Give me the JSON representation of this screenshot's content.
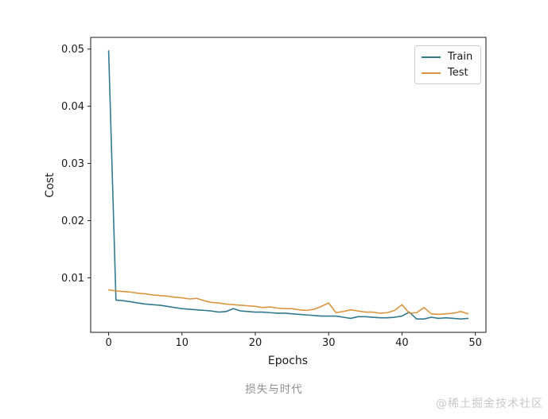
{
  "chart_data": {
    "type": "line",
    "xlabel": "Epochs",
    "ylabel": "Cost",
    "xlim": [
      -2.45,
      51.45
    ],
    "ylim": [
      0.00046,
      0.05205
    ],
    "xticks": [
      0,
      10,
      20,
      30,
      40,
      50
    ],
    "xtick_labels": [
      "0",
      "10",
      "20",
      "30",
      "40",
      "50"
    ],
    "yticks": [
      0.01,
      0.02,
      0.03,
      0.04,
      0.05
    ],
    "ytick_labels": [
      "0.01",
      "0.02",
      "0.03",
      "0.04",
      "0.05"
    ],
    "grid": false,
    "legend_position": "upper right",
    "x": [
      0,
      1,
      2,
      3,
      4,
      5,
      6,
      7,
      8,
      9,
      10,
      11,
      12,
      13,
      14,
      15,
      16,
      17,
      18,
      19,
      20,
      21,
      22,
      23,
      24,
      25,
      26,
      27,
      28,
      29,
      30,
      31,
      32,
      33,
      34,
      35,
      36,
      37,
      38,
      39,
      40,
      41,
      42,
      43,
      44,
      45,
      46,
      47,
      48,
      49
    ],
    "series": [
      {
        "name": "Train",
        "color": "#31798f",
        "values": [
          0.0497,
          0.0061,
          0.006,
          0.0058,
          0.0056,
          0.0054,
          0.0053,
          0.0052,
          0.005,
          0.0048,
          0.0046,
          0.0045,
          0.0044,
          0.0043,
          0.0042,
          0.004,
          0.0041,
          0.0046,
          0.0042,
          0.0041,
          0.004,
          0.004,
          0.0039,
          0.0038,
          0.0038,
          0.0037,
          0.0036,
          0.0035,
          0.0034,
          0.0033,
          0.0033,
          0.0033,
          0.0031,
          0.0029,
          0.0032,
          0.0032,
          0.0031,
          0.003,
          0.003,
          0.0031,
          0.0033,
          0.004,
          0.0028,
          0.0028,
          0.0031,
          0.0029,
          0.003,
          0.0029,
          0.0028,
          0.0029
        ]
      },
      {
        "name": "Test",
        "color": "#d9953f",
        "values": [
          0.0079,
          0.0077,
          0.0076,
          0.0075,
          0.0073,
          0.0072,
          0.007,
          0.0069,
          0.0068,
          0.0066,
          0.0065,
          0.0063,
          0.0064,
          0.006,
          0.0057,
          0.0056,
          0.0054,
          0.0053,
          0.0052,
          0.0051,
          0.005,
          0.0048,
          0.0049,
          0.0047,
          0.0046,
          0.0046,
          0.0044,
          0.0043,
          0.0045,
          0.005,
          0.0056,
          0.0039,
          0.0041,
          0.0044,
          0.0042,
          0.004,
          0.004,
          0.0038,
          0.0039,
          0.0043,
          0.0053,
          0.0038,
          0.0039,
          0.0048,
          0.0037,
          0.0036,
          0.0037,
          0.0038,
          0.0041,
          0.0037
        ]
      }
    ]
  },
  "caption": "损失与时代",
  "watermark": "@稀土掘金技术社区",
  "colors": {
    "spine": "#1a1a1a",
    "caption_text": "#8f8f8f",
    "watermark_text": "#c8c8c8"
  }
}
